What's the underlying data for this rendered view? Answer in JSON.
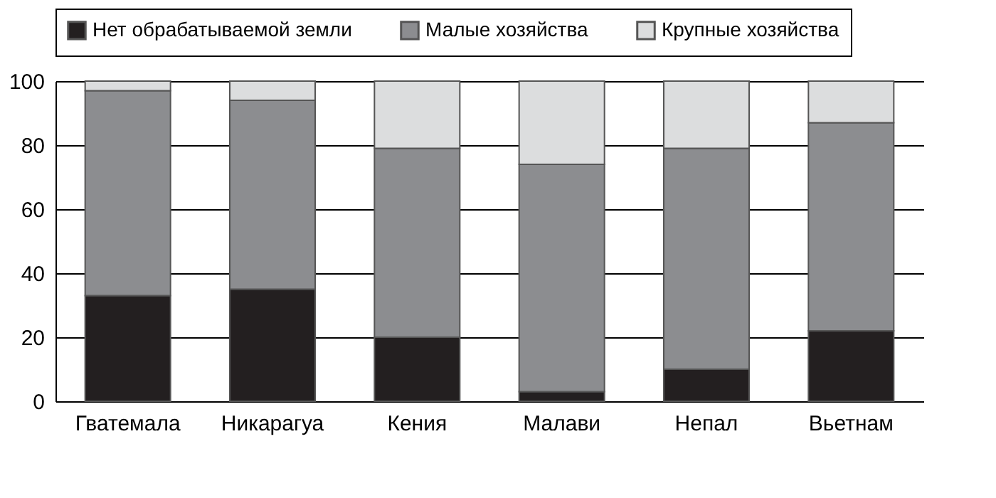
{
  "chart_data": {
    "type": "bar",
    "stacked": true,
    "categories": [
      "Гватемала",
      "Никарагуа",
      "Кения",
      "Малави",
      "Непал",
      "Вьетнам"
    ],
    "series": [
      {
        "name": "Нет обрабатываемой земли",
        "color": "#231f20",
        "values": [
          33,
          35,
          20,
          3,
          10,
          22
        ]
      },
      {
        "name": "Малые хозяйства",
        "color": "#8c8d90",
        "values": [
          64,
          59,
          59,
          71,
          69,
          65
        ]
      },
      {
        "name": "Крупные хозяйства",
        "color": "#dcddde",
        "values": [
          3,
          6,
          21,
          26,
          21,
          13
        ]
      }
    ],
    "ylim": [
      0,
      100
    ],
    "yticks": [
      0,
      20,
      40,
      60,
      80,
      100
    ],
    "grid": "y",
    "legend": "top"
  }
}
